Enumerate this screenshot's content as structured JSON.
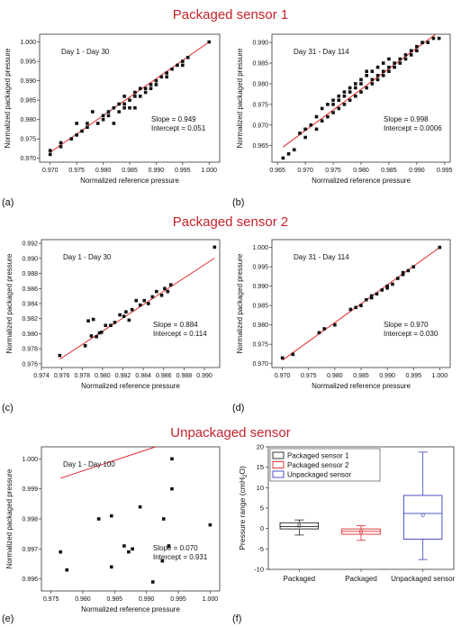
{
  "headings": {
    "sensor1": "Packaged sensor 1",
    "sensor2": "Packaged sensor 2",
    "unpackaged": "Unpackaged sensor"
  },
  "colors": {
    "fit_line": "#e0262b",
    "marker": "#111111",
    "title": "#c4232b"
  },
  "chart_data": [
    {
      "id": "a",
      "panel_label": "(a)",
      "type": "scatter",
      "title": "",
      "annotation": "Day 1 - Day 30",
      "xlabel": "Normalized reference pressure",
      "ylabel": "Normalized packaged pressure",
      "xlim": [
        0.968,
        1.002
      ],
      "ylim": [
        0.969,
        1.002
      ],
      "xticks": [
        "0.970",
        "0.975",
        "0.980",
        "0.985",
        "0.990",
        "0.995",
        "1.000"
      ],
      "yticks": [
        "0.970",
        "0.975",
        "0.980",
        "0.985",
        "0.990",
        "0.995",
        "1.000"
      ],
      "slope_text": "Slope = 0.949",
      "intercept_text": "Intercept = 0.051",
      "fit": {
        "slope": 0.949,
        "intercept": 0.051
      },
      "x": [
        0.97,
        0.97,
        0.972,
        0.972,
        0.974,
        0.975,
        0.975,
        0.976,
        0.977,
        0.977,
        0.978,
        0.979,
        0.98,
        0.98,
        0.981,
        0.981,
        0.982,
        0.982,
        0.983,
        0.983,
        0.984,
        0.984,
        0.984,
        0.985,
        0.985,
        0.986,
        0.986,
        0.986,
        0.987,
        0.987,
        0.988,
        0.988,
        0.989,
        0.989,
        0.99,
        0.99,
        0.991,
        0.992,
        0.992,
        0.993,
        0.994,
        0.995,
        0.995,
        0.996,
        1.0
      ],
      "y": [
        0.971,
        0.972,
        0.974,
        0.973,
        0.975,
        0.979,
        0.976,
        0.977,
        0.979,
        0.978,
        0.982,
        0.979,
        0.981,
        0.98,
        0.982,
        0.981,
        0.979,
        0.983,
        0.984,
        0.982,
        0.983,
        0.986,
        0.984,
        0.985,
        0.983,
        0.987,
        0.986,
        0.983,
        0.988,
        0.986,
        0.988,
        0.987,
        0.989,
        0.988,
        0.99,
        0.989,
        0.991,
        0.992,
        0.991,
        0.993,
        0.994,
        0.995,
        0.994,
        0.996,
        1.0
      ]
    },
    {
      "id": "b",
      "panel_label": "(b)",
      "type": "scatter",
      "title": "",
      "annotation": "Day 31 - Day 114",
      "xlabel": "Normalized reference pressure",
      "ylabel": "Normalized packaged pressure",
      "xlim": [
        0.964,
        0.996
      ],
      "ylim": [
        0.961,
        0.992
      ],
      "xticks": [
        "0.965",
        "0.970",
        "0.975",
        "0.980",
        "0.985",
        "0.990",
        "0.995"
      ],
      "yticks": [
        "0.965",
        "0.970",
        "0.975",
        "0.980",
        "0.985",
        "0.990"
      ],
      "slope_text": "Slope = 0.998",
      "intercept_text": "Intercept = 0.0006",
      "fit": {
        "slope": 0.998,
        "intercept": 0.0006
      },
      "x": [
        0.966,
        0.967,
        0.968,
        0.969,
        0.97,
        0.97,
        0.971,
        0.972,
        0.972,
        0.973,
        0.973,
        0.974,
        0.974,
        0.975,
        0.975,
        0.975,
        0.976,
        0.976,
        0.976,
        0.977,
        0.977,
        0.977,
        0.978,
        0.978,
        0.978,
        0.979,
        0.979,
        0.979,
        0.98,
        0.98,
        0.98,
        0.981,
        0.981,
        0.981,
        0.982,
        0.982,
        0.982,
        0.983,
        0.983,
        0.983,
        0.984,
        0.984,
        0.984,
        0.985,
        0.985,
        0.985,
        0.986,
        0.986,
        0.987,
        0.987,
        0.988,
        0.988,
        0.989,
        0.989,
        0.99,
        0.99,
        0.991,
        0.992,
        0.993,
        0.994
      ],
      "y": [
        0.962,
        0.963,
        0.964,
        0.968,
        0.969,
        0.967,
        0.97,
        0.969,
        0.972,
        0.971,
        0.974,
        0.972,
        0.975,
        0.973,
        0.976,
        0.975,
        0.974,
        0.977,
        0.976,
        0.975,
        0.978,
        0.977,
        0.976,
        0.979,
        0.978,
        0.977,
        0.98,
        0.979,
        0.978,
        0.981,
        0.98,
        0.979,
        0.982,
        0.983,
        0.98,
        0.981,
        0.983,
        0.982,
        0.981,
        0.984,
        0.983,
        0.982,
        0.985,
        0.984,
        0.983,
        0.986,
        0.985,
        0.984,
        0.986,
        0.985,
        0.987,
        0.986,
        0.988,
        0.987,
        0.989,
        0.988,
        0.99,
        0.99,
        0.991,
        0.991
      ]
    },
    {
      "id": "c",
      "panel_label": "(c)",
      "type": "scatter",
      "title": "",
      "annotation": "Day 1 - Day 30",
      "xlabel": "Normalized reference pressure",
      "ylabel": "Normalized packaged pressure",
      "xlim": [
        0.974,
        0.9915
      ],
      "ylim": [
        0.9755,
        0.9925
      ],
      "xticks": [
        "0.974",
        "0.976",
        "0.978",
        "0.980",
        "0.982",
        "0.984",
        "0.986",
        "0.988",
        "0.990"
      ],
      "yticks": [
        "0.976",
        "0.978",
        "0.980",
        "0.982",
        "0.984",
        "0.986",
        "0.988",
        "0.990",
        "0.992"
      ],
      "slope_text": "Slope = 0.884",
      "intercept_text": "Intercept = 0.114",
      "fit": {
        "slope": 0.884,
        "intercept": 0.114
      },
      "x": [
        0.9758,
        0.9783,
        0.9786,
        0.9789,
        0.9791,
        0.9794,
        0.9797,
        0.9799,
        0.9803,
        0.9808,
        0.9812,
        0.9817,
        0.9821,
        0.9823,
        0.9826,
        0.9829,
        0.9833,
        0.9837,
        0.9841,
        0.9845,
        0.9849,
        0.9853,
        0.9858,
        0.9861,
        0.9864,
        0.9867,
        0.991
      ],
      "y": [
        0.9771,
        0.9784,
        0.9817,
        0.9797,
        0.9819,
        0.9796,
        0.9801,
        0.9802,
        0.9811,
        0.9811,
        0.9815,
        0.9825,
        0.9823,
        0.9829,
        0.9818,
        0.9832,
        0.9844,
        0.9838,
        0.9844,
        0.984,
        0.9849,
        0.9856,
        0.9851,
        0.986,
        0.9856,
        0.9865,
        0.9915
      ]
    },
    {
      "id": "d",
      "panel_label": "(d)",
      "type": "scatter",
      "title": "",
      "annotation": "Day 31 - Day 114",
      "xlabel": "Normalized reference pressure",
      "ylabel": "Normalized packaged pressure",
      "xlim": [
        0.968,
        1.002
      ],
      "ylim": [
        0.969,
        1.002
      ],
      "xticks": [
        "0.970",
        "0.975",
        "0.980",
        "0.985",
        "0.990",
        "0.995",
        "1.000"
      ],
      "yticks": [
        "0.970",
        "0.975",
        "0.980",
        "0.985",
        "0.990",
        "0.995",
        "1.000"
      ],
      "slope_text": "Slope = 0.970",
      "intercept_text": "Intercept = 0.030",
      "fit": {
        "slope": 0.97,
        "intercept": 0.03
      },
      "x": [
        0.97,
        0.972,
        0.977,
        0.978,
        0.98,
        0.983,
        0.984,
        0.985,
        0.986,
        0.987,
        0.987,
        0.988,
        0.989,
        0.99,
        0.99,
        0.991,
        0.992,
        0.993,
        0.993,
        0.994,
        0.995,
        1.0
      ],
      "y": [
        0.9715,
        0.9724,
        0.978,
        0.979,
        0.98,
        0.984,
        0.9845,
        0.985,
        0.9865,
        0.9875,
        0.987,
        0.988,
        0.989,
        0.99,
        0.9895,
        0.9905,
        0.992,
        0.9935,
        0.993,
        0.994,
        0.995,
        1.0
      ]
    },
    {
      "id": "e",
      "panel_label": "(e)",
      "type": "scatter",
      "title": "",
      "annotation": "Day 1 - Day 100",
      "xlabel": "Normalized reference pressure",
      "ylabel": "Normalized packaged pressure",
      "xlim": [
        0.9735,
        1.0015
      ],
      "ylim": [
        0.9956,
        1.0004
      ],
      "xticks": [
        "0.975",
        "0.980",
        "0.985",
        "0.990",
        "0.995",
        "1.000"
      ],
      "yticks": [
        "0.996",
        "0.997",
        "0.998",
        "0.999",
        "1.000"
      ],
      "slope_text": "Slope = 0.070",
      "intercept_text": "Intercept = 0.931",
      "fit": {
        "slope": 0.07,
        "intercept": 0.931
      },
      "x": [
        0.9765,
        0.9775,
        0.9825,
        0.9845,
        0.9845,
        0.9865,
        0.9872,
        0.9878,
        0.989,
        0.991,
        0.9925,
        0.9927,
        0.9935,
        0.994,
        0.994,
        1.0
      ],
      "y": [
        0.9969,
        0.9963,
        0.998,
        0.9981,
        0.9964,
        0.9971,
        0.9969,
        0.997,
        0.9984,
        0.9959,
        0.9966,
        0.998,
        0.9971,
        1.0,
        0.999,
        0.9978
      ]
    },
    {
      "id": "f",
      "panel_label": "(f)",
      "type": "box",
      "title": "",
      "annotation": "",
      "xlabel": "",
      "ylabel": "Pressure range (cmH2O)",
      "ylim": [
        -10,
        20
      ],
      "yticks": [
        "-10",
        "-5",
        "0",
        "5",
        "10",
        "15",
        "20"
      ],
      "categories": [
        "Packaged",
        "Packaged",
        "Unpackaged sensor"
      ],
      "legend": [
        "Packaged sensor 1",
        "Packaged sensor 2",
        "Unpackaged sensor"
      ],
      "series_colors": [
        "#222222",
        "#e0262b",
        "#3a3fbf"
      ],
      "boxes": [
        {
          "name": "Packaged sensor 1",
          "min": -1.6,
          "q1": -0.1,
          "median": 0.5,
          "q3": 1.4,
          "max": 2.1,
          "mean": 0.7
        },
        {
          "name": "Packaged sensor 2",
          "min": -2.9,
          "q1": -1.4,
          "median": -0.7,
          "q3": -0.1,
          "max": 0.7,
          "mean": -0.8
        },
        {
          "name": "Unpackaged sensor",
          "min": -7.6,
          "q1": -2.6,
          "median": 3.7,
          "q3": 8.1,
          "max": 18.7,
          "mean": 3.3
        }
      ]
    }
  ]
}
